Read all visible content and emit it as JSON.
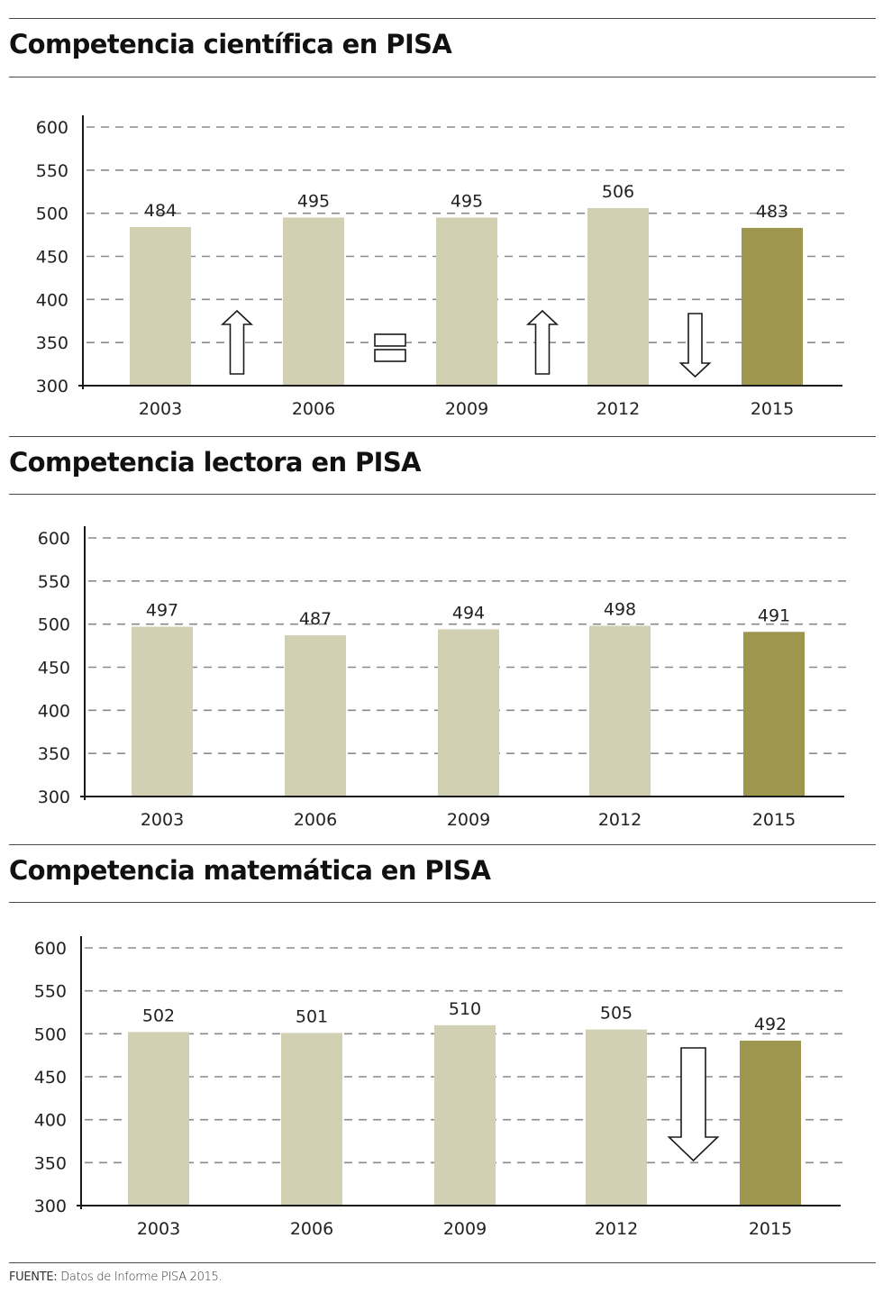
{
  "colors": {
    "bar": "#d2d0b3",
    "bar_highlight": "#9e954e",
    "grid": "#8a8a8a",
    "axis": "#1a1a1a",
    "arrow_stroke": "#1a1a1a",
    "arrow_fill": "#ffffff"
  },
  "chart_data": [
    {
      "type": "bar",
      "title": "Competencia científica en PISA",
      "xlabel": "",
      "ylabel": "",
      "categories": [
        "2003",
        "2006",
        "2009",
        "2012",
        "2015"
      ],
      "values": [
        484,
        495,
        495,
        506,
        483
      ],
      "value_labels": [
        "484",
        "495",
        "495",
        "506",
        "483"
      ],
      "highlight_index": 4,
      "ylim": [
        300,
        600
      ],
      "yticks": [
        300,
        350,
        400,
        450,
        500,
        550,
        600
      ],
      "ytick_labels": [
        "300",
        "350",
        "400",
        "450",
        "500",
        "550",
        "600"
      ],
      "grid": true,
      "legend": "none",
      "trend_markers": [
        {
          "between": [
            "2003",
            "2006"
          ],
          "icon": "arrow-up-icon",
          "meaning": "up"
        },
        {
          "between": [
            "2006",
            "2009"
          ],
          "icon": "equals-icon",
          "meaning": "equal"
        },
        {
          "between": [
            "2009",
            "2012"
          ],
          "icon": "arrow-up-icon",
          "meaning": "up"
        },
        {
          "between": [
            "2012",
            "2015"
          ],
          "icon": "arrow-down-icon",
          "meaning": "down"
        }
      ]
    },
    {
      "type": "bar",
      "title": "Competencia lectora en PISA",
      "xlabel": "",
      "ylabel": "",
      "categories": [
        "2003",
        "2006",
        "2009",
        "2012",
        "2015"
      ],
      "values": [
        497,
        487,
        494,
        498,
        491
      ],
      "value_labels": [
        "497",
        "487",
        "494",
        "498",
        "491"
      ],
      "highlight_index": 4,
      "ylim": [
        300,
        600
      ],
      "yticks": [
        300,
        350,
        400,
        450,
        500,
        550,
        600
      ],
      "ytick_labels": [
        "300",
        "350",
        "400",
        "450",
        "500",
        "550",
        "600"
      ],
      "grid": true,
      "legend": "none",
      "trend_markers": []
    },
    {
      "type": "bar",
      "title": "Competencia matemática en PISA",
      "xlabel": "",
      "ylabel": "",
      "categories": [
        "2003",
        "2006",
        "2009",
        "2012",
        "2015"
      ],
      "values": [
        502,
        501,
        510,
        505,
        492
      ],
      "value_labels": [
        "502",
        "501",
        "510",
        "505",
        "492"
      ],
      "highlight_index": 4,
      "ylim": [
        300,
        600
      ],
      "yticks": [
        300,
        350,
        400,
        450,
        500,
        550,
        600
      ],
      "ytick_labels": [
        "300",
        "350",
        "400",
        "450",
        "500",
        "550",
        "600"
      ],
      "grid": true,
      "legend": "none",
      "trend_markers": [
        {
          "between": [
            "2012",
            "2015"
          ],
          "icon": "arrow-down-icon",
          "meaning": "down",
          "size": "large"
        }
      ]
    }
  ],
  "footer": {
    "source_label": "FUENTE:",
    "source_text": " Datos de Informe PISA 2015."
  }
}
